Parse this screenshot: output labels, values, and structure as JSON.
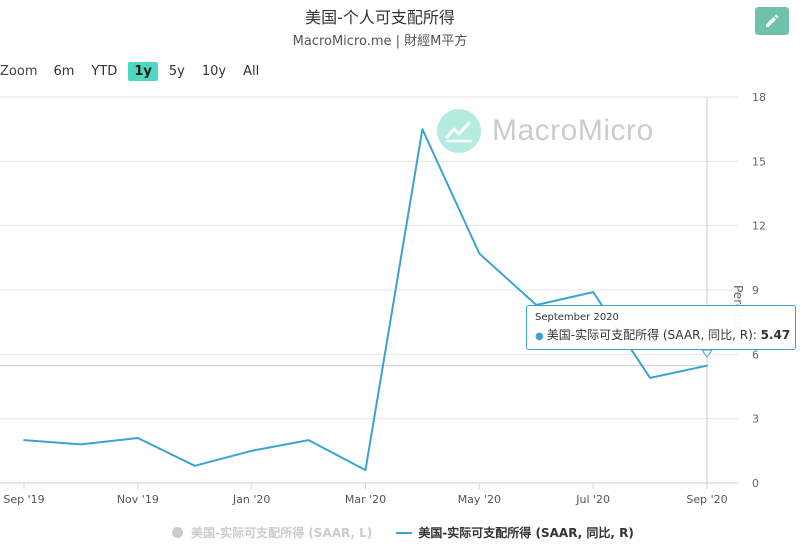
{
  "header": {
    "title": "美国-个人可支配所得",
    "subtitle": "MacroMicro.me | 財經M平方"
  },
  "toolbar": {
    "edit_icon": "pencil-icon"
  },
  "range_selector": {
    "label": "Zoom",
    "buttons": [
      "6m",
      "YTD",
      "1y",
      "5y",
      "10y",
      "All"
    ],
    "active": "1y"
  },
  "watermark": {
    "text": "MacroMicro"
  },
  "tooltip": {
    "date": "September 2020",
    "series_label": "美国-实际可支配所得 (SAAR, 同比, R): ",
    "value": "5.47"
  },
  "legend": [
    {
      "label": "美国-实际可支配所得 (SAAR, L)",
      "visible": false
    },
    {
      "label": "美国-实际可支配所得 (SAAR, 同比, R)",
      "visible": true
    }
  ],
  "colors": {
    "series": "#3aa3cf",
    "accent": "#4fd8c1",
    "edit_button": "#6fc2a9"
  },
  "chart_data": {
    "type": "line",
    "title": "美国-个人可支配所得",
    "subtitle": "MacroMicro.me | 財經M平方",
    "y_axis_title": "Percent",
    "y_axis_side": "right",
    "ylim": [
      0,
      18
    ],
    "y_ticks": [
      "0",
      "3",
      "6",
      "9",
      "12",
      "15",
      "18"
    ],
    "x_ticks": [
      "Sep '19",
      "Nov '19",
      "Jan '20",
      "Mar '20",
      "May '20",
      "Jul '20",
      "Sep '20"
    ],
    "series": [
      {
        "name": "美国-实际可支配所得 (SAAR, 同比, R)",
        "x": [
          "2019-09",
          "2019-10",
          "2019-11",
          "2019-12",
          "2020-01",
          "2020-02",
          "2020-03",
          "2020-04",
          "2020-05",
          "2020-06",
          "2020-07",
          "2020-08",
          "2020-09"
        ],
        "values": [
          2.0,
          1.8,
          2.1,
          0.8,
          1.5,
          2.0,
          0.6,
          16.5,
          10.7,
          8.3,
          8.9,
          4.9,
          5.47
        ]
      }
    ],
    "grid": true,
    "legend_position": "bottom-center"
  }
}
